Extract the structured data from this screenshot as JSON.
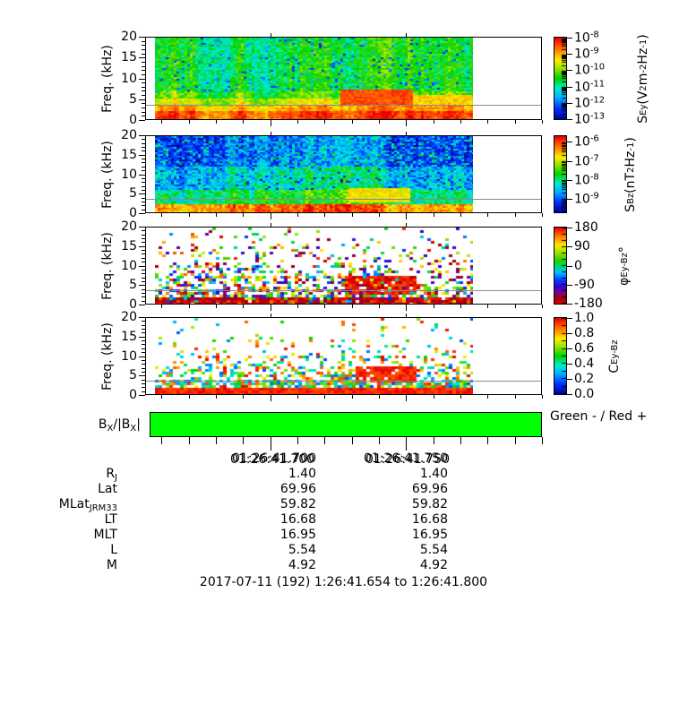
{
  "chart_data": {
    "type": "spectrogram-stack",
    "footer": "2017-07-11 (192) 1:26:41.654 to 1:26:41.800",
    "freq_axis": {
      "label_segments": [
        {
          "t": "Freq. (kHz)"
        }
      ],
      "range_khz": [
        0,
        20
      ],
      "major_ticks": [
        0,
        5,
        10,
        15,
        20
      ],
      "minor_step": 1
    },
    "time_axis": {
      "range_s": [
        41.654,
        41.8
      ],
      "minor_step_s": 0.01,
      "majors": [
        {
          "s": 41.7,
          "label": "01:26:41.700"
        },
        {
          "s": 41.75,
          "label": "01:26:41.750"
        }
      ]
    },
    "marker_line_khz": 3.5,
    "colormaps": {
      "rainbow": [
        [
          0,
          "#0000a0"
        ],
        [
          0.13,
          "#0033ff"
        ],
        [
          0.27,
          "#00b4ff"
        ],
        [
          0.38,
          "#00efc8"
        ],
        [
          0.5,
          "#00d200"
        ],
        [
          0.63,
          "#9fe600"
        ],
        [
          0.73,
          "#ffec00"
        ],
        [
          0.83,
          "#ff9000"
        ],
        [
          0.93,
          "#ff3c00"
        ],
        [
          1,
          "#e60000"
        ]
      ],
      "phase": [
        [
          0,
          "#e60000"
        ],
        [
          0.06,
          "#a00000"
        ],
        [
          0.14,
          "#7d0094"
        ],
        [
          0.22,
          "#3200d2"
        ],
        [
          0.31,
          "#0041ff"
        ],
        [
          0.41,
          "#00c3ff"
        ],
        [
          0.5,
          "#00d95a"
        ],
        [
          0.57,
          "#27d200"
        ],
        [
          0.68,
          "#a0e600"
        ],
        [
          0.77,
          "#ffe900"
        ],
        [
          0.87,
          "#ff8c00"
        ],
        [
          1,
          "#ee0000"
        ]
      ]
    },
    "panels": [
      {
        "key": "sey",
        "kind": "continuous",
        "palette": "rainbow",
        "seed": 101,
        "unit_segments": [
          {
            "t": "S"
          },
          {
            "t": "Ey",
            "sub": 1
          },
          {
            "t": " (V"
          },
          {
            "t": "2",
            "sup": 1
          },
          {
            "t": "m"
          },
          {
            "t": "-2",
            "sup": 1
          },
          {
            "t": "Hz"
          },
          {
            "t": "-1",
            "sup": 1
          },
          {
            "t": ")"
          }
        ],
        "colorbar": {
          "scale": "log",
          "range": [
            -13,
            -8
          ],
          "ticks": [
            -8,
            -9,
            -10,
            -11,
            -12,
            -13
          ]
        },
        "bands": [
          {
            "f": [
              7,
              20.01
            ],
            "v": 0.5,
            "jit": 0.09,
            "speck_p": 0.07,
            "speck": [
              0.08,
              0.3
            ]
          },
          {
            "f": [
              5,
              7
            ],
            "v": 0.58,
            "jit": 0.09,
            "speck_p": 0.02,
            "speck": [
              0.3,
              0.4
            ]
          },
          {
            "f": [
              3.5,
              5
            ],
            "v": 0.7,
            "jit": 0.08
          },
          {
            "f": [
              2,
              3.5
            ],
            "v": 0.82,
            "jit": 0.07
          },
          {
            "f": [
              0,
              2
            ],
            "v": 0.93,
            "jit": 0.06
          }
        ],
        "blobs": [
          {
            "x": [
              0.585,
              0.815
            ],
            "f": [
              3.4,
              7.3
            ],
            "v": 0.91,
            "jit": 0.05
          },
          {
            "x": [
              0.815,
              1.0
            ],
            "f": [
              3.4,
              5.8
            ],
            "v": 0.76,
            "jit": 0.06
          }
        ]
      },
      {
        "key": "sbz",
        "kind": "continuous",
        "palette": "rainbow",
        "seed": 202,
        "unit_segments": [
          {
            "t": "S"
          },
          {
            "t": "Bz",
            "sub": 1
          },
          {
            "t": " (nT"
          },
          {
            "t": "2",
            "sup": 1
          },
          {
            "t": "Hz"
          },
          {
            "t": "-1",
            "sup": 1
          },
          {
            "t": ")"
          }
        ],
        "colorbar": {
          "scale": "log",
          "range": [
            -9.7,
            -5.7
          ],
          "ticks": [
            -6,
            -7,
            -8,
            -9
          ]
        },
        "bands": [
          {
            "f": [
              12,
              20.01
            ],
            "v": 0.17,
            "jit": 0.12,
            "speck_p": 0.14,
            "speck": [
              0.3,
              0.5
            ]
          },
          {
            "f": [
              6,
              12
            ],
            "v": 0.33,
            "jit": 0.13,
            "speck_p": 0.06,
            "speck": [
              0.03,
              0.13
            ]
          },
          {
            "f": [
              2,
              6
            ],
            "v": 0.46,
            "jit": 0.11
          },
          {
            "f": [
              0,
              2
            ],
            "v": 0.84,
            "jit": 0.09
          }
        ],
        "blobs": [
          {
            "x": [
              0.61,
              0.8
            ],
            "f": [
              2.6,
              6.2
            ],
            "v": 0.72,
            "jit": 0.07
          }
        ]
      },
      {
        "key": "phi",
        "kind": "scatter",
        "palette": "phase",
        "seed": 303,
        "unit_segments": [
          {
            "t": "φ"
          },
          {
            "t": "Ey-Bz",
            "sub": 1
          },
          {
            "t": " °"
          }
        ],
        "colorbar": {
          "scale": "linear",
          "range": [
            -180,
            180
          ],
          "minor": 30,
          "ticks": [
            {
              "v": 180,
              "l": "180"
            },
            {
              "v": 90,
              "l": "90"
            },
            {
              "v": 0,
              "l": "0"
            },
            {
              "v": -90,
              "l": "-90"
            },
            {
              "v": -180,
              "l": "-180"
            }
          ]
        },
        "density": [
          {
            "f": [
              15,
              20.01
            ],
            "p": 0.07
          },
          {
            "f": [
              10,
              15
            ],
            "p": 0.16
          },
          {
            "f": [
              7,
              10
            ],
            "p": 0.32
          },
          {
            "f": [
              4,
              7
            ],
            "p": 0.5
          },
          {
            "f": [
              1.8,
              4
            ],
            "p": 0.68
          },
          {
            "f": [
              0,
              1.8
            ],
            "p": 0.97,
            "mode": "dark"
          }
        ],
        "blobs": [
          {
            "x": [
              0.6,
              0.82
            ],
            "f": [
              2.5,
              7.0
            ],
            "p": 0.95,
            "mode": "red"
          }
        ]
      },
      {
        "key": "coh",
        "kind": "scatter",
        "palette": "rainbow",
        "seed": 404,
        "unit_segments": [
          {
            "t": "C"
          },
          {
            "t": "Ey-Bz",
            "sub": 1
          }
        ],
        "colorbar": {
          "scale": "linear",
          "range": [
            0,
            1
          ],
          "minor": 0.1,
          "ticks": [
            {
              "v": 1,
              "l": "1.0"
            },
            {
              "v": 0.8,
              "l": "0.8"
            },
            {
              "v": 0.6,
              "l": "0.6"
            },
            {
              "v": 0.4,
              "l": "0.4"
            },
            {
              "v": 0.2,
              "l": "0.2"
            },
            {
              "v": 0,
              "l": "0.0"
            }
          ]
        },
        "density": [
          {
            "f": [
              15,
              20.01
            ],
            "p": 0.05
          },
          {
            "f": [
              10,
              15
            ],
            "p": 0.12
          },
          {
            "f": [
              7,
              10
            ],
            "p": 0.25
          },
          {
            "f": [
              4,
              7
            ],
            "p": 0.42
          },
          {
            "f": [
              1.5,
              4
            ],
            "p": 0.8
          },
          {
            "f": [
              0,
              1.5
            ],
            "p": 1.0,
            "mode": "red"
          }
        ],
        "blobs": [
          {
            "x": [
              0.63,
              0.82
            ],
            "f": [
              3.4,
              7.0
            ],
            "p": 0.92,
            "mode": "red"
          }
        ]
      }
    ],
    "bx_bar": {
      "label_segments": [
        {
          "t": "B"
        },
        {
          "t": "X",
          "sub": 1
        },
        {
          "t": "/|B"
        },
        {
          "t": "X",
          "sub": 1
        },
        {
          "t": "|"
        }
      ],
      "color": "#00ff00",
      "value": "negative (all green)",
      "legend": "Green - / Red +"
    },
    "ephemeris": {
      "columns": [
        "01:26:41.700",
        "01:26:41.750"
      ],
      "rows": [
        {
          "label": [
            {
              "t": "R"
            },
            {
              "t": "J",
              "sub": 1
            }
          ],
          "values": [
            "1.40",
            "1.40"
          ]
        },
        {
          "label": [
            {
              "t": "Lat"
            }
          ],
          "values": [
            "69.96",
            "69.96"
          ]
        },
        {
          "label": [
            {
              "t": "MLat"
            },
            {
              "t": "JRM33",
              "sub": 1
            }
          ],
          "values": [
            "59.82",
            "59.82"
          ]
        },
        {
          "label": [
            {
              "t": "LT"
            }
          ],
          "values": [
            "16.68",
            "16.68"
          ]
        },
        {
          "label": [
            {
              "t": "MLT"
            }
          ],
          "values": [
            "16.95",
            "16.95"
          ]
        },
        {
          "label": [
            {
              "t": "L"
            }
          ],
          "values": [
            "5.54",
            "5.54"
          ]
        },
        {
          "label": [
            {
              "t": "M"
            }
          ],
          "values": [
            "4.92",
            "4.92"
          ]
        }
      ]
    }
  }
}
